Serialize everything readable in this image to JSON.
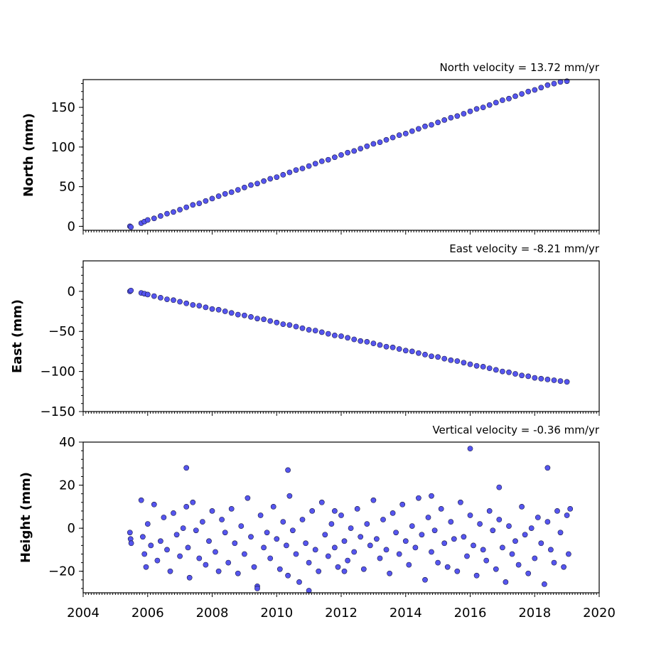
{
  "chart_data": [
    {
      "type": "scatter",
      "title": "North velocity = 13.72 mm/yr",
      "ylabel": "North (mm)",
      "xlim": [
        2004,
        2020
      ],
      "ylim": [
        -5,
        185
      ],
      "yticks": [
        0,
        50,
        100,
        150
      ],
      "series": [
        {
          "x": [
            2005.45,
            2005.48,
            2005.8,
            2005.9,
            2006.0,
            2006.2,
            2006.4,
            2006.6,
            2006.8,
            2007.0,
            2007.2,
            2007.4,
            2007.6,
            2007.8,
            2008.0,
            2008.2,
            2008.4,
            2008.6,
            2008.8,
            2009.0,
            2009.2,
            2009.4,
            2009.6,
            2009.8,
            2010.0,
            2010.2,
            2010.4,
            2010.6,
            2010.8,
            2011.0,
            2011.2,
            2011.4,
            2011.6,
            2011.8,
            2012.0,
            2012.2,
            2012.4,
            2012.6,
            2012.8,
            2013.0,
            2013.2,
            2013.4,
            2013.6,
            2013.8,
            2014.0,
            2014.2,
            2014.4,
            2014.6,
            2014.8,
            2015.0,
            2015.2,
            2015.4,
            2015.6,
            2015.8,
            2016.0,
            2016.2,
            2016.4,
            2016.6,
            2016.8,
            2017.0,
            2017.2,
            2017.4,
            2017.6,
            2017.8,
            2018.0,
            2018.2,
            2018.4,
            2018.6,
            2018.8,
            2019.0
          ],
          "y": [
            0,
            -1,
            4,
            6,
            8,
            10,
            13,
            16,
            18,
            21,
            24,
            27,
            29,
            32,
            35,
            38,
            41,
            43,
            46,
            49,
            52,
            54,
            57,
            60,
            62,
            65,
            68,
            71,
            73,
            76,
            79,
            82,
            84,
            87,
            90,
            93,
            95,
            98,
            101,
            104,
            106,
            109,
            112,
            115,
            117,
            120,
            123,
            126,
            128,
            131,
            134,
            137,
            139,
            142,
            145,
            148,
            150,
            153,
            156,
            159,
            161,
            164,
            167,
            170,
            172,
            175,
            178,
            180,
            182,
            183
          ]
        }
      ]
    },
    {
      "type": "scatter",
      "title": "East velocity = -8.21 mm/yr",
      "ylabel": "East (mm)",
      "xlim": [
        2004,
        2020
      ],
      "ylim": [
        -150,
        38
      ],
      "yticks": [
        0,
        -50,
        -100,
        -150
      ],
      "series": [
        {
          "x": [
            2005.45,
            2005.48,
            2005.8,
            2005.9,
            2006.0,
            2006.2,
            2006.4,
            2006.6,
            2006.8,
            2007.0,
            2007.2,
            2007.4,
            2007.6,
            2007.8,
            2008.0,
            2008.2,
            2008.4,
            2008.6,
            2008.8,
            2009.0,
            2009.2,
            2009.4,
            2009.6,
            2009.8,
            2010.0,
            2010.2,
            2010.4,
            2010.6,
            2010.8,
            2011.0,
            2011.2,
            2011.4,
            2011.6,
            2011.8,
            2012.0,
            2012.2,
            2012.4,
            2012.6,
            2012.8,
            2013.0,
            2013.2,
            2013.4,
            2013.6,
            2013.8,
            2014.0,
            2014.2,
            2014.4,
            2014.6,
            2014.8,
            2015.0,
            2015.2,
            2015.4,
            2015.6,
            2015.8,
            2016.0,
            2016.2,
            2016.4,
            2016.6,
            2016.8,
            2017.0,
            2017.2,
            2017.4,
            2017.6,
            2017.8,
            2018.0,
            2018.2,
            2018.4,
            2018.6,
            2018.8,
            2019.0
          ],
          "y": [
            0,
            1,
            -2,
            -3,
            -4,
            -6,
            -8,
            -10,
            -11,
            -13,
            -15,
            -17,
            -18,
            -20,
            -22,
            -23,
            -25,
            -27,
            -29,
            -30,
            -32,
            -34,
            -35,
            -37,
            -39,
            -41,
            -42,
            -44,
            -46,
            -48,
            -49,
            -51,
            -53,
            -55,
            -56,
            -58,
            -60,
            -62,
            -63,
            -65,
            -67,
            -69,
            -70,
            -72,
            -74,
            -75,
            -77,
            -79,
            -81,
            -82,
            -84,
            -86,
            -87,
            -89,
            -91,
            -93,
            -94,
            -96,
            -98,
            -100,
            -101,
            -103,
            -105,
            -106,
            -108,
            -109,
            -110,
            -111,
            -112,
            -113
          ]
        }
      ]
    },
    {
      "type": "scatter",
      "title": "Vertical velocity = -0.36 mm/yr",
      "ylabel": "Height (mm)",
      "xlabel": "",
      "xlim": [
        2004,
        2020
      ],
      "ylim": [
        -30,
        40
      ],
      "yticks": [
        40,
        20,
        0,
        -20
      ],
      "xticks": [
        2004,
        2006,
        2008,
        2010,
        2012,
        2014,
        2016,
        2018,
        2020
      ],
      "series": [
        {
          "x": [
            2005.45,
            2005.47,
            2005.49,
            2005.8,
            2005.85,
            2005.9,
            2005.95,
            2006.0,
            2006.1,
            2006.2,
            2006.3,
            2006.4,
            2006.5,
            2006.6,
            2006.7,
            2006.8,
            2006.9,
            2007.0,
            2007.1,
            2007.2,
            2007.25,
            2007.3,
            2007.4,
            2007.5,
            2007.6,
            2007.7,
            2007.8,
            2007.9,
            2008.0,
            2008.1,
            2008.2,
            2008.3,
            2008.4,
            2008.5,
            2008.6,
            2008.7,
            2008.8,
            2008.9,
            2009.0,
            2009.1,
            2009.2,
            2009.3,
            2009.4,
            2009.5,
            2009.6,
            2009.7,
            2009.8,
            2009.9,
            2010.0,
            2010.1,
            2010.2,
            2010.3,
            2010.35,
            2010.4,
            2010.5,
            2010.6,
            2010.7,
            2010.8,
            2010.9,
            2011.0,
            2011.1,
            2011.2,
            2011.3,
            2011.4,
            2011.5,
            2011.6,
            2011.7,
            2011.8,
            2011.9,
            2012.0,
            2012.1,
            2012.2,
            2012.3,
            2012.4,
            2012.5,
            2012.6,
            2012.7,
            2012.8,
            2012.9,
            2013.0,
            2013.1,
            2013.2,
            2013.3,
            2013.4,
            2013.5,
            2013.6,
            2013.7,
            2013.8,
            2013.9,
            2014.0,
            2014.1,
            2014.2,
            2014.3,
            2014.4,
            2014.5,
            2014.6,
            2014.7,
            2014.8,
            2014.9,
            2015.0,
            2015.1,
            2015.2,
            2015.3,
            2015.4,
            2015.5,
            2015.6,
            2015.7,
            2015.8,
            2015.9,
            2016.0,
            2016.1,
            2016.2,
            2016.3,
            2016.4,
            2016.5,
            2016.6,
            2016.7,
            2016.8,
            2016.9,
            2017.0,
            2017.1,
            2017.2,
            2017.3,
            2017.4,
            2017.5,
            2017.6,
            2017.7,
            2017.8,
            2017.9,
            2018.0,
            2018.1,
            2018.2,
            2018.3,
            2018.4,
            2018.5,
            2018.6,
            2018.7,
            2018.8,
            2018.9,
            2019.0,
            2019.05,
            2019.1,
            2016.0,
            2018.4,
            2007.2,
            2010.35,
            2011.8,
            2014.8,
            2009.4,
            2011.0,
            2012.1,
            2016.9
          ],
          "y": [
            -2,
            -5,
            -7,
            13,
            -4,
            -12,
            -18,
            2,
            -8,
            11,
            -15,
            -6,
            5,
            -10,
            -20,
            7,
            -3,
            -13,
            0,
            10,
            -9,
            -23,
            12,
            -1,
            -14,
            3,
            -17,
            -6,
            8,
            -11,
            -20,
            4,
            -2,
            -16,
            9,
            -7,
            -21,
            1,
            -12,
            14,
            -4,
            -18,
            -27,
            6,
            -9,
            -2,
            -14,
            10,
            -5,
            -19,
            3,
            -8,
            -22,
            15,
            -1,
            -12,
            -25,
            4,
            -7,
            -16,
            8,
            -10,
            -20,
            12,
            -3,
            -13,
            2,
            -9,
            -18,
            6,
            -6,
            -15,
            0,
            -11,
            9,
            -4,
            -19,
            2,
            -8,
            13,
            -5,
            -14,
            4,
            -10,
            -21,
            7,
            -2,
            -12,
            11,
            -6,
            -17,
            1,
            -9,
            14,
            -3,
            -24,
            5,
            -11,
            -1,
            -16,
            9,
            -7,
            -18,
            3,
            -5,
            -20,
            12,
            -4,
            -13,
            6,
            -8,
            -22,
            2,
            -10,
            -15,
            8,
            -1,
            -19,
            4,
            -9,
            -25,
            1,
            -12,
            -6,
            -17,
            10,
            -3,
            -21,
            0,
            -14,
            5,
            -7,
            -26,
            3,
            -10,
            -16,
            8,
            -2,
            -18,
            6,
            -12,
            9,
            37,
            28,
            28,
            27,
            8,
            15,
            -28,
            -29,
            -20,
            19
          ]
        }
      ]
    }
  ]
}
